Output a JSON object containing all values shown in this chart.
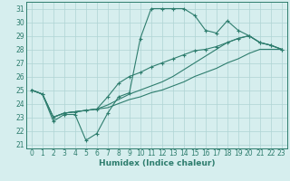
{
  "xlabel": "Humidex (Indice chaleur)",
  "x_values": [
    0,
    1,
    2,
    3,
    4,
    5,
    6,
    7,
    8,
    9,
    10,
    11,
    12,
    13,
    14,
    15,
    16,
    17,
    18,
    19,
    20,
    21,
    22,
    23
  ],
  "line1_jagged": [
    25.0,
    24.7,
    22.7,
    23.2,
    23.2,
    21.3,
    21.8,
    23.3,
    24.5,
    24.8,
    28.8,
    31.0,
    31.0,
    31.0,
    31.0,
    30.5,
    29.4,
    29.2,
    30.1,
    29.4,
    29.0,
    28.5,
    28.3,
    28.0
  ],
  "line2_mid": [
    25.0,
    24.7,
    23.0,
    23.3,
    23.4,
    23.5,
    23.6,
    24.5,
    25.5,
    26.0,
    26.3,
    26.7,
    27.0,
    27.3,
    27.6,
    27.9,
    28.0,
    28.2,
    28.5,
    28.8,
    29.0,
    28.5,
    28.3,
    28.0
  ],
  "line3_lo": [
    25.0,
    24.7,
    23.0,
    23.3,
    23.4,
    23.5,
    23.6,
    23.7,
    24.0,
    24.3,
    24.5,
    24.8,
    25.0,
    25.3,
    25.6,
    26.0,
    26.3,
    26.6,
    27.0,
    27.3,
    27.7,
    28.0,
    28.0,
    28.0
  ],
  "line4_hi": [
    25.0,
    24.7,
    23.0,
    23.3,
    23.4,
    23.5,
    23.6,
    23.9,
    24.3,
    24.7,
    25.0,
    25.3,
    25.6,
    26.0,
    26.5,
    27.0,
    27.5,
    28.0,
    28.5,
    28.8,
    29.0,
    28.5,
    28.3,
    28.0
  ],
  "line_color": "#2e7d6e",
  "bg_color": "#d6eeee",
  "grid_color": "#afd4d4",
  "ylim_min": 20.7,
  "ylim_max": 31.5,
  "yticks": [
    21,
    22,
    23,
    24,
    25,
    26,
    27,
    28,
    29,
    30,
    31
  ],
  "xlim_min": -0.5,
  "xlim_max": 23.5,
  "xticks": [
    0,
    1,
    2,
    3,
    4,
    5,
    6,
    7,
    8,
    9,
    10,
    11,
    12,
    13,
    14,
    15,
    16,
    17,
    18,
    19,
    20,
    21,
    22,
    23
  ],
  "tick_fontsize": 5.5,
  "xlabel_fontsize": 6.5
}
